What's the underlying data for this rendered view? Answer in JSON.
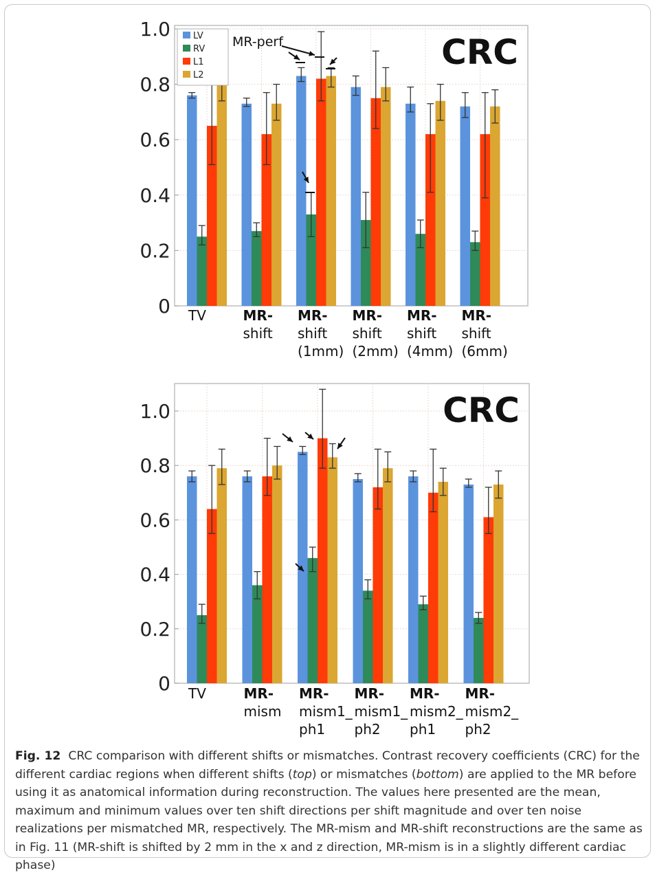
{
  "colors": {
    "LV": "#5b93dd",
    "RV": "#2e8a58",
    "L1": "#ff3b08",
    "L2": "#dba631"
  },
  "caption": {
    "fig_label": "Fig. 12",
    "p1": "CRC comparison with different shifts or mismatches. Contrast recovery coefficients (CRC) for the different cardiac regions when different shifts (",
    "top_word": "top",
    "p2": ") or mismatches (",
    "bottom_word": "bottom",
    "p3": ") are applied to the MR before using it as anatomical information during reconstruction. The values here presented are the mean, maximum and minimum values over ten shift directions per shift magnitude and over ten noise realizations per mismatched MR, respectively. The MR-mism and MR-shift reconstructions are the same as in Fig. 11 (MR-shift is shifted by 2 mm in the x and z direction, MR-mism is in a slightly different cardiac phase)"
  },
  "chart_data": [
    {
      "type": "bar",
      "title": "CRC",
      "ylim": [
        0,
        1.0
      ],
      "yticks": [
        "0",
        "0.2",
        "0.4",
        "0.6",
        "0.8",
        "1.0"
      ],
      "legend": {
        "placement": "top-left",
        "entries": [
          "LV",
          "RV",
          "L1",
          "L2"
        ]
      },
      "categories": [
        {
          "lines": [
            "TV"
          ],
          "bold": false
        },
        {
          "lines": [
            "MR-",
            "shift"
          ],
          "bold": true
        },
        {
          "lines": [
            "MR-",
            "shift",
            "(1mm)"
          ],
          "bold": true
        },
        {
          "lines": [
            "MR-",
            "shift",
            "(2mm)"
          ],
          "bold": true
        },
        {
          "lines": [
            "MR-",
            "shift",
            "(4mm)"
          ],
          "bold": true
        },
        {
          "lines": [
            "MR-",
            "shift",
            "(6mm)"
          ],
          "bold": true
        }
      ],
      "series": [
        {
          "name": "LV",
          "values": [
            0.76,
            0.73,
            0.83,
            0.79,
            0.73,
            0.72
          ],
          "err_low": [
            0.75,
            0.72,
            0.81,
            0.76,
            0.7,
            0.68
          ],
          "err_high": [
            0.77,
            0.75,
            0.86,
            0.83,
            0.79,
            0.77
          ]
        },
        {
          "name": "RV",
          "values": [
            0.25,
            0.27,
            0.33,
            0.31,
            0.26,
            0.23
          ],
          "err_low": [
            0.22,
            0.25,
            0.25,
            0.21,
            0.21,
            0.2
          ],
          "err_high": [
            0.29,
            0.3,
            0.41,
            0.41,
            0.31,
            0.27
          ]
        },
        {
          "name": "L1",
          "values": [
            0.65,
            0.62,
            0.82,
            0.75,
            0.62,
            0.62
          ],
          "err_low": [
            0.51,
            0.51,
            0.74,
            0.64,
            0.41,
            0.39
          ],
          "err_high": [
            0.8,
            0.77,
            0.99,
            0.92,
            0.73,
            0.77
          ]
        },
        {
          "name": "L2",
          "values": [
            0.8,
            0.73,
            0.83,
            0.79,
            0.74,
            0.72
          ],
          "err_low": [
            0.74,
            0.67,
            0.79,
            0.74,
            0.67,
            0.66
          ],
          "err_high": [
            0.88,
            0.8,
            0.86,
            0.86,
            0.8,
            0.78
          ]
        }
      ],
      "annotation": "MR-perf"
    },
    {
      "type": "bar",
      "title": "CRC",
      "ylim": [
        0,
        1.0
      ],
      "yticks": [
        "0",
        "0.2",
        "0.4",
        "0.6",
        "0.8",
        "1.0"
      ],
      "categories": [
        {
          "lines": [
            "TV"
          ],
          "bold": false
        },
        {
          "lines": [
            "MR-",
            "mism"
          ],
          "bold": true
        },
        {
          "lines": [
            "MR-",
            "mism1_",
            "ph1"
          ],
          "bold": true
        },
        {
          "lines": [
            "MR-",
            "mism1_",
            "ph2"
          ],
          "bold": true
        },
        {
          "lines": [
            "MR-",
            "mism2_",
            "ph1"
          ],
          "bold": true
        },
        {
          "lines": [
            "MR-",
            "mism2_",
            "ph2"
          ],
          "bold": true
        }
      ],
      "series": [
        {
          "name": "LV",
          "values": [
            0.76,
            0.76,
            0.85,
            0.75,
            0.76,
            0.73
          ],
          "err_low": [
            0.74,
            0.74,
            0.84,
            0.74,
            0.74,
            0.72
          ],
          "err_high": [
            0.78,
            0.78,
            0.87,
            0.77,
            0.78,
            0.75
          ]
        },
        {
          "name": "RV",
          "values": [
            0.25,
            0.36,
            0.46,
            0.34,
            0.29,
            0.24
          ],
          "err_low": [
            0.22,
            0.31,
            0.41,
            0.31,
            0.27,
            0.22
          ],
          "err_high": [
            0.29,
            0.41,
            0.5,
            0.38,
            0.32,
            0.26
          ]
        },
        {
          "name": "L1",
          "values": [
            0.64,
            0.76,
            0.9,
            0.72,
            0.7,
            0.61
          ],
          "err_low": [
            0.55,
            0.69,
            0.79,
            0.64,
            0.63,
            0.55
          ],
          "err_high": [
            0.8,
            0.9,
            1.08,
            0.86,
            0.86,
            0.72
          ]
        },
        {
          "name": "L2",
          "values": [
            0.79,
            0.8,
            0.83,
            0.79,
            0.74,
            0.73
          ],
          "err_low": [
            0.73,
            0.75,
            0.79,
            0.74,
            0.69,
            0.68
          ],
          "err_high": [
            0.86,
            0.87,
            0.88,
            0.85,
            0.79,
            0.78
          ]
        }
      ]
    }
  ]
}
